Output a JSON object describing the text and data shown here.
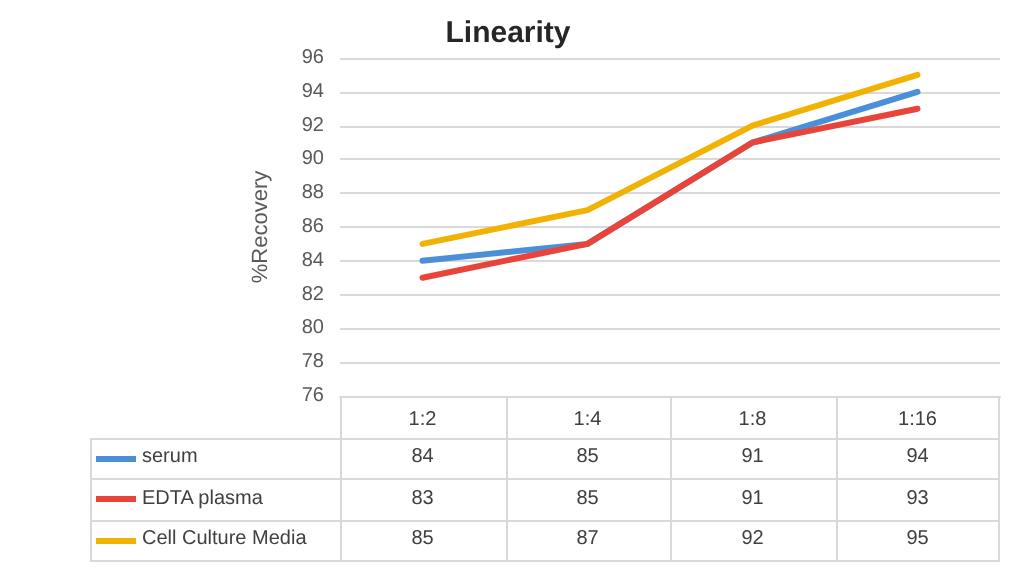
{
  "chart_data": {
    "type": "line",
    "title": "Linearity",
    "ylabel": "%Recovery",
    "categories": [
      "1:2",
      "1:4",
      "1:8",
      "1:16"
    ],
    "series": [
      {
        "name": "serum",
        "color": "#4a8fd8",
        "values": [
          84,
          85,
          91,
          94
        ]
      },
      {
        "name": "EDTA plasma",
        "color": "#e8443a",
        "values": [
          83,
          85,
          91,
          93
        ]
      },
      {
        "name": "Cell Culture Media",
        "color": "#f2b203",
        "values": [
          85,
          87,
          92,
          95
        ]
      }
    ],
    "ylim": [
      76,
      96
    ],
    "yticks": [
      76,
      78,
      80,
      82,
      84,
      86,
      88,
      90,
      92,
      94,
      96
    ],
    "grid": "y",
    "legend": "bottom",
    "data_labels": true,
    "marker": "none",
    "line_style": "solid"
  }
}
